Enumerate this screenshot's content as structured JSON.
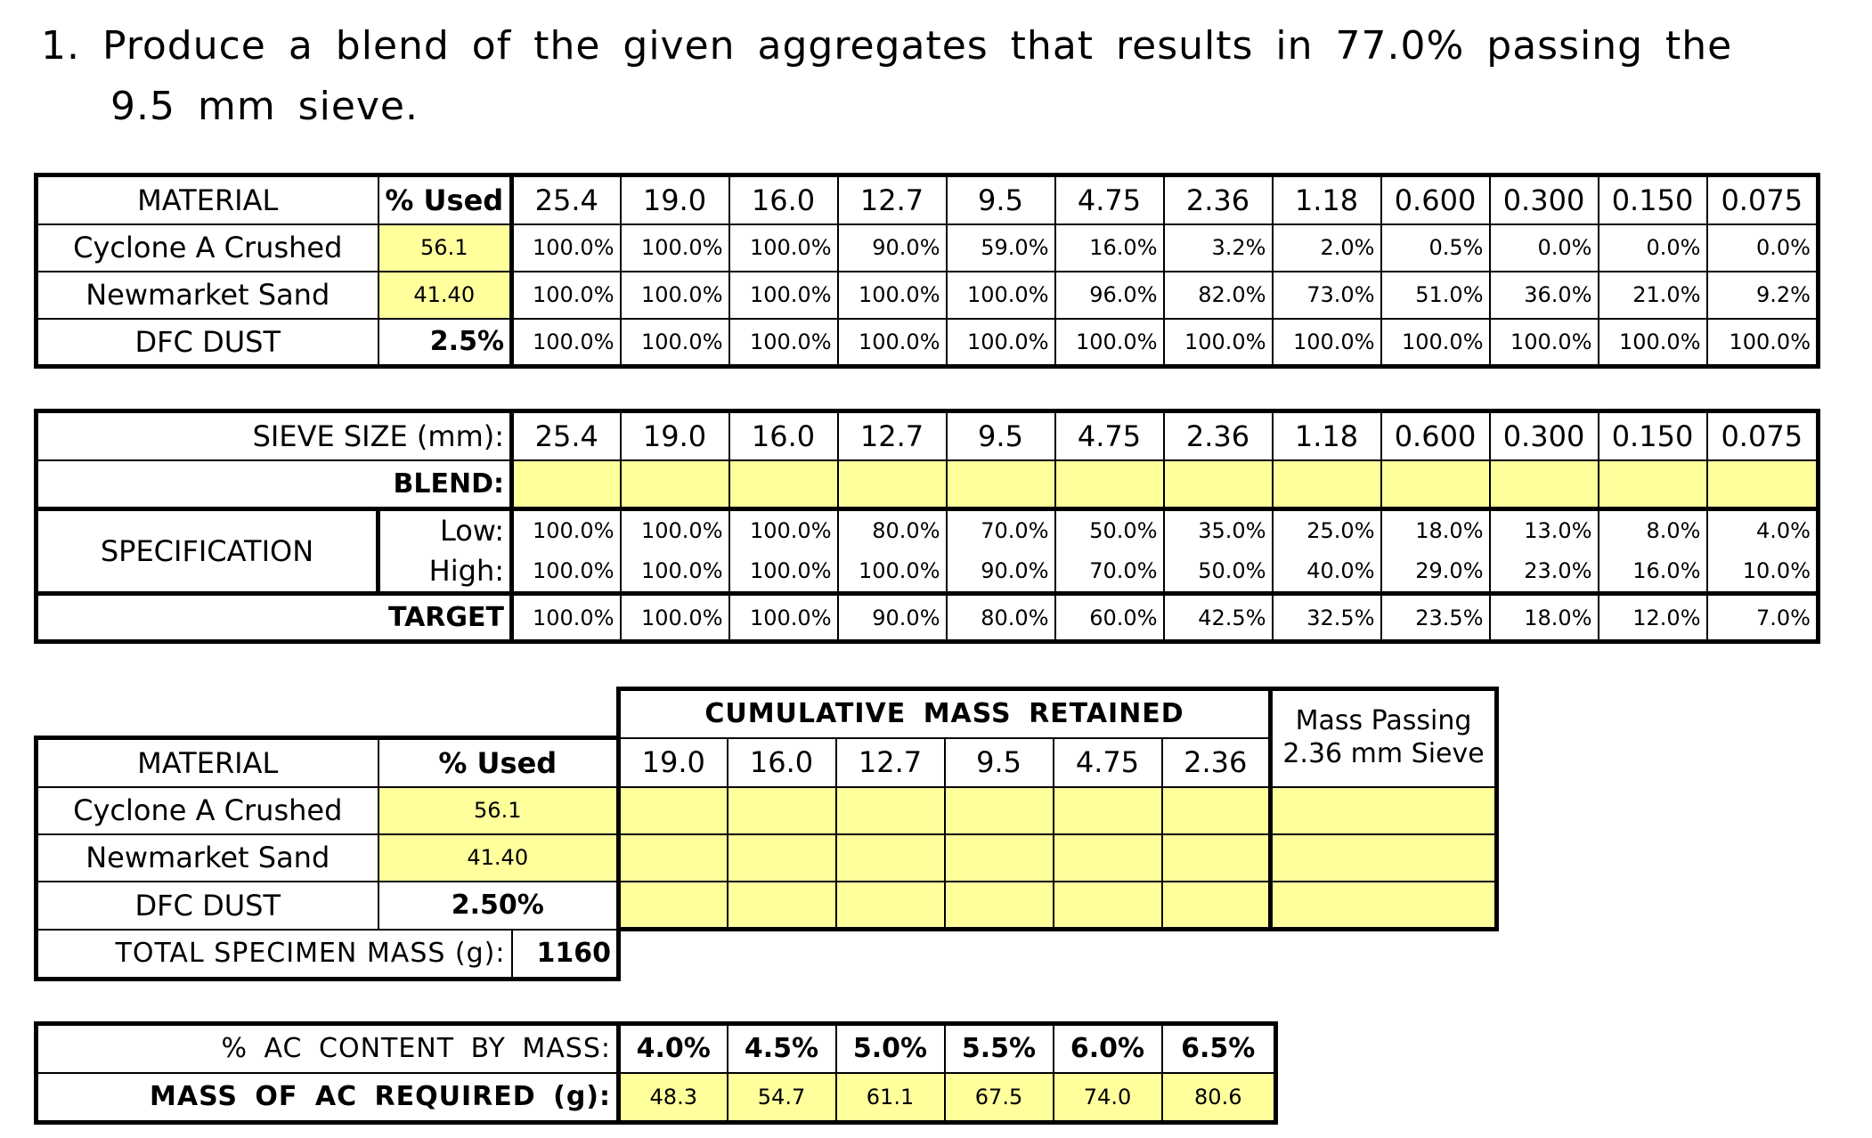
{
  "question": {
    "line1": "1. Produce a blend of the given aggregates that results in 77.0% passing the",
    "line2": "9.5 mm sieve."
  },
  "table1": {
    "header_material": "MATERIAL",
    "header_used": "% Used",
    "sieves": [
      "25.4",
      "19.0",
      "16.0",
      "12.7",
      "9.5",
      "4.75",
      "2.36",
      "1.18",
      "0.600",
      "0.300",
      "0.150",
      "0.075"
    ],
    "rows": [
      {
        "name": "Cyclone A Crushed",
        "used": "56.1",
        "values": [
          "100.0%",
          "100.0%",
          "100.0%",
          "90.0%",
          "59.0%",
          "16.0%",
          "3.2%",
          "2.0%",
          "0.5%",
          "0.0%",
          "0.0%",
          "0.0%"
        ]
      },
      {
        "name": "Newmarket Sand",
        "used": "41.40",
        "values": [
          "100.0%",
          "100.0%",
          "100.0%",
          "100.0%",
          "100.0%",
          "96.0%",
          "82.0%",
          "73.0%",
          "51.0%",
          "36.0%",
          "21.0%",
          "9.2%"
        ]
      },
      {
        "name": "DFC DUST",
        "used": "2.5%",
        "values": [
          "100.0%",
          "100.0%",
          "100.0%",
          "100.0%",
          "100.0%",
          "100.0%",
          "100.0%",
          "100.0%",
          "100.0%",
          "100.0%",
          "100.0%",
          "100.0%"
        ]
      }
    ]
  },
  "table2": {
    "sieve_label": "SIEVE SIZE (mm):",
    "sieves": [
      "25.4",
      "19.0",
      "16.0",
      "12.7",
      "9.5",
      "4.75",
      "2.36",
      "1.18",
      "0.600",
      "0.300",
      "0.150",
      "0.075"
    ],
    "blend_label": "BLEND:",
    "spec_label": "SPECIFICATION",
    "low_label": "Low:",
    "high_label": "High:",
    "target_label": "TARGET",
    "low": [
      "100.0%",
      "100.0%",
      "100.0%",
      "80.0%",
      "70.0%",
      "50.0%",
      "35.0%",
      "25.0%",
      "18.0%",
      "13.0%",
      "8.0%",
      "4.0%"
    ],
    "high": [
      "100.0%",
      "100.0%",
      "100.0%",
      "100.0%",
      "90.0%",
      "70.0%",
      "50.0%",
      "40.0%",
      "29.0%",
      "23.0%",
      "16.0%",
      "10.0%"
    ],
    "target": [
      "100.0%",
      "100.0%",
      "100.0%",
      "90.0%",
      "80.0%",
      "60.0%",
      "42.5%",
      "32.5%",
      "23.5%",
      "18.0%",
      "12.0%",
      "7.0%"
    ]
  },
  "table3": {
    "cumulative_label": "CUMULATIVE MASS RETAINED",
    "mass_passing_line1": "Mass Passing",
    "mass_passing_line2": "2.36 mm Sieve",
    "header_material": "MATERIAL",
    "header_used": "% Used",
    "sieves": [
      "19.0",
      "16.0",
      "12.7",
      "9.5",
      "4.75",
      "2.36"
    ],
    "rows": [
      {
        "name": "Cyclone A Crushed",
        "used": "56.1"
      },
      {
        "name": "Newmarket Sand",
        "used": "41.40"
      },
      {
        "name": "DFC DUST",
        "used": "2.50%"
      }
    ],
    "total_label": "TOTAL SPECIMEN MASS (g):",
    "total_value": "1160"
  },
  "table4": {
    "ac_label": "% AC CONTENT BY MASS:",
    "ac_values": [
      "4.0%",
      "4.5%",
      "5.0%",
      "5.5%",
      "6.0%",
      "6.5%"
    ],
    "mass_label": "MASS OF AC REQUIRED (g):",
    "mass_values": [
      "48.3",
      "54.7",
      "61.1",
      "67.5",
      "74.0",
      "80.6"
    ]
  }
}
